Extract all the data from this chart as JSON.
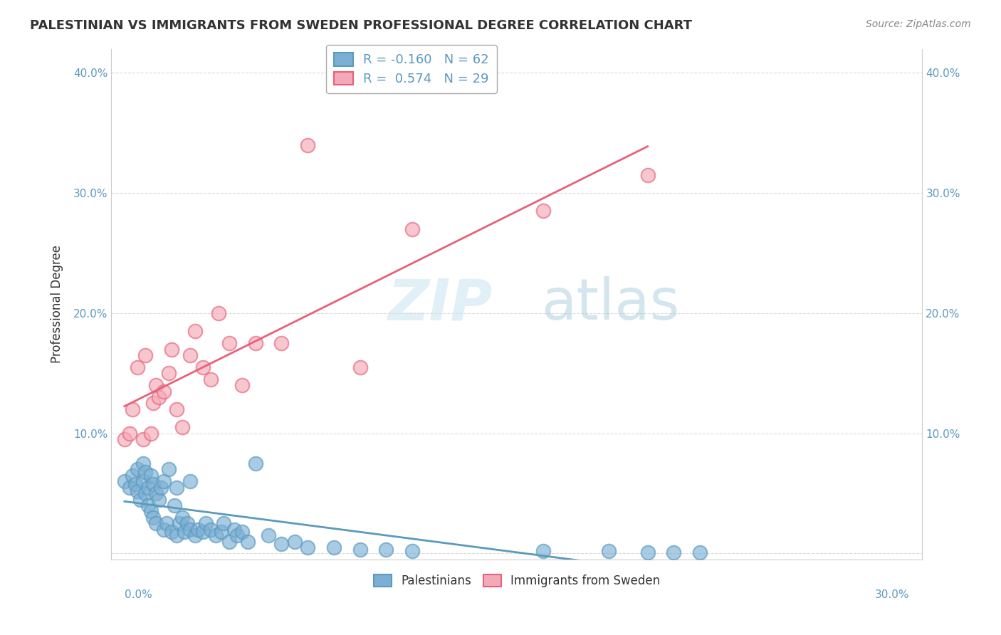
{
  "title": "PALESTINIAN VS IMMIGRANTS FROM SWEDEN PROFESSIONAL DEGREE CORRELATION CHART",
  "source": "Source: ZipAtlas.com",
  "ylabel": "Professional Degree",
  "ytick_labels": [
    "",
    "10.0%",
    "20.0%",
    "30.0%",
    "40.0%"
  ],
  "ytick_values": [
    0,
    0.1,
    0.2,
    0.3,
    0.4
  ],
  "xlim": [
    -0.005,
    0.305
  ],
  "ylim": [
    -0.005,
    0.42
  ],
  "legend_r1": "-0.160",
  "legend_n1": "62",
  "legend_r2": " 0.574",
  "legend_n2": "29",
  "blue_color": "#7bafd4",
  "pink_color": "#f4a9b8",
  "blue_line_color": "#5a9abf",
  "pink_line_color": "#e8607a",
  "watermark_zip": "ZIP",
  "watermark_atlas": "atlas",
  "blue_scatter_x": [
    0.0,
    0.002,
    0.003,
    0.004,
    0.005,
    0.005,
    0.006,
    0.007,
    0.007,
    0.008,
    0.008,
    0.009,
    0.009,
    0.01,
    0.01,
    0.011,
    0.011,
    0.012,
    0.012,
    0.013,
    0.014,
    0.015,
    0.015,
    0.016,
    0.017,
    0.018,
    0.019,
    0.02,
    0.02,
    0.021,
    0.022,
    0.023,
    0.024,
    0.025,
    0.025,
    0.027,
    0.028,
    0.03,
    0.031,
    0.033,
    0.035,
    0.037,
    0.038,
    0.04,
    0.042,
    0.043,
    0.045,
    0.047,
    0.05,
    0.055,
    0.06,
    0.065,
    0.07,
    0.08,
    0.09,
    0.1,
    0.11,
    0.16,
    0.185,
    0.2,
    0.21,
    0.22
  ],
  "blue_scatter_y": [
    0.06,
    0.055,
    0.065,
    0.058,
    0.052,
    0.07,
    0.045,
    0.06,
    0.075,
    0.05,
    0.068,
    0.04,
    0.055,
    0.035,
    0.065,
    0.03,
    0.058,
    0.025,
    0.05,
    0.045,
    0.055,
    0.02,
    0.06,
    0.025,
    0.07,
    0.018,
    0.04,
    0.015,
    0.055,
    0.025,
    0.03,
    0.018,
    0.025,
    0.02,
    0.06,
    0.015,
    0.02,
    0.018,
    0.025,
    0.02,
    0.015,
    0.018,
    0.025,
    0.01,
    0.02,
    0.015,
    0.018,
    0.01,
    0.075,
    0.015,
    0.008,
    0.01,
    0.005,
    0.005,
    0.003,
    0.003,
    0.002,
    0.002,
    0.002,
    0.001,
    0.001,
    0.001
  ],
  "pink_scatter_x": [
    0.0,
    0.002,
    0.003,
    0.005,
    0.007,
    0.008,
    0.01,
    0.011,
    0.012,
    0.013,
    0.015,
    0.017,
    0.018,
    0.02,
    0.022,
    0.025,
    0.027,
    0.03,
    0.033,
    0.036,
    0.04,
    0.045,
    0.05,
    0.06,
    0.07,
    0.09,
    0.11,
    0.16,
    0.2
  ],
  "pink_scatter_y": [
    0.095,
    0.1,
    0.12,
    0.155,
    0.095,
    0.165,
    0.1,
    0.125,
    0.14,
    0.13,
    0.135,
    0.15,
    0.17,
    0.12,
    0.105,
    0.165,
    0.185,
    0.155,
    0.145,
    0.2,
    0.175,
    0.14,
    0.175,
    0.175,
    0.34,
    0.155,
    0.27,
    0.285,
    0.315
  ],
  "bg_color": "#ffffff",
  "grid_color": "#cccccc"
}
